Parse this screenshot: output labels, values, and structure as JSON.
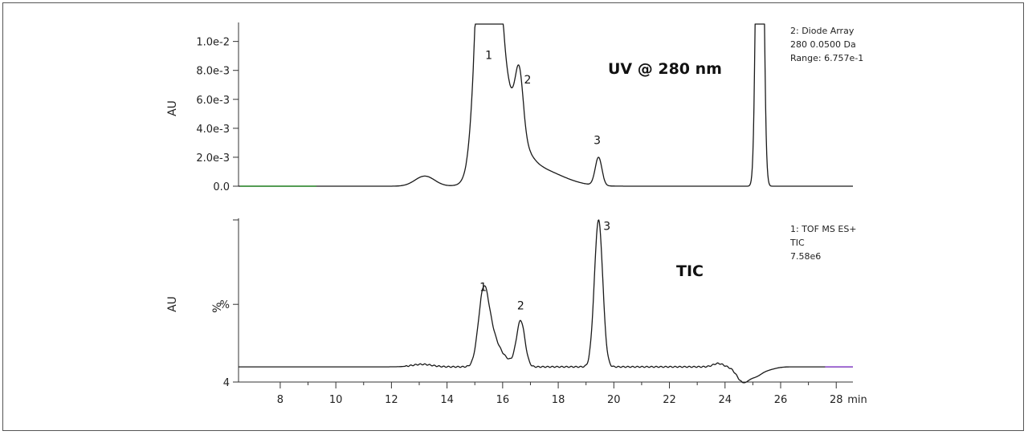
{
  "chart_data": [
    {
      "type": "line",
      "panel": "top",
      "label": "UV @ 280 nm",
      "ylabel": "AU",
      "y_ticks": [
        "0.0",
        "2.0e-3",
        "4.0e-3",
        "6.0e-3",
        "8.0e-3",
        "1.0e-2"
      ],
      "y_tick_values": [
        0,
        0.002,
        0.004,
        0.006,
        0.008,
        0.01
      ],
      "ylim": [
        0,
        0.0112
      ],
      "xlim": [
        6.5,
        28.6
      ],
      "info": [
        "2: Diode Array",
        "280 0.0500 Da",
        "Range: 6.757e-1"
      ],
      "peak_labels": [
        {
          "text": "1",
          "x": 15.5,
          "y": 0.0088
        },
        {
          "text": "2",
          "x": 16.9,
          "y": 0.0071
        },
        {
          "text": "3",
          "x": 19.4,
          "y": 0.0029
        }
      ],
      "baseline": 0,
      "peaks": [
        {
          "x": 13.2,
          "y": 0.0007,
          "w": 0.35
        },
        {
          "x": 15.45,
          "y": 0.03,
          "w": 0.3
        },
        {
          "x": 16.0,
          "y": 0.006,
          "w": 0.55
        },
        {
          "x": 16.6,
          "y": 0.004,
          "w": 0.14
        },
        {
          "x": 17.2,
          "y": 0.0012,
          "w": 0.9
        },
        {
          "x": 19.45,
          "y": 0.00195,
          "w": 0.12
        },
        {
          "x": 25.25,
          "y": 0.05,
          "w": 0.1
        }
      ]
    },
    {
      "type": "line",
      "panel": "bottom",
      "label": "TIC",
      "ylabel": "AU",
      "ylabel2": "%",
      "y_ticks": [
        "4",
        "%"
      ],
      "y_tick_values": [
        4,
        50
      ],
      "ylim": [
        4,
        100
      ],
      "xlim": [
        6.5,
        28.6
      ],
      "info": [
        "1: TOF MS ES+",
        "TIC",
        "7.58e6"
      ],
      "peak_labels": [
        {
          "text": "1",
          "x": 15.3,
          "y": 58
        },
        {
          "text": "2",
          "x": 16.65,
          "y": 47
        },
        {
          "text": "3",
          "x": 19.75,
          "y": 94
        }
      ],
      "baseline": 13,
      "peaks": [
        {
          "x": 13.1,
          "y": 1.5,
          "w": 0.35
        },
        {
          "x": 15.3,
          "y": 36,
          "w": 0.18
        },
        {
          "x": 15.55,
          "y": 18,
          "w": 0.25
        },
        {
          "x": 16.0,
          "y": 5,
          "w": 0.3
        },
        {
          "x": 16.65,
          "y": 27,
          "w": 0.15
        },
        {
          "x": 19.45,
          "y": 87,
          "w": 0.15
        },
        {
          "x": 23.75,
          "y": 2,
          "w": 0.18
        },
        {
          "x": 24.65,
          "y": -9,
          "w": 0.22
        },
        {
          "x": 25.1,
          "y": -4,
          "w": 0.2
        },
        {
          "x": 25.45,
          "y": -2,
          "w": 0.3
        }
      ]
    }
  ],
  "x_axis": {
    "ticks": [
      "8",
      "10",
      "12",
      "14",
      "16",
      "18",
      "20",
      "22",
      "24",
      "26",
      "28"
    ],
    "tick_values": [
      8,
      10,
      12,
      14,
      16,
      18,
      20,
      22,
      24,
      26,
      28
    ],
    "unit": "min"
  },
  "colors": {
    "trace": "#1a1a1a",
    "top_baseline_start": "#2f8f2f",
    "bottom_baseline_end": "#8a3fd1"
  }
}
